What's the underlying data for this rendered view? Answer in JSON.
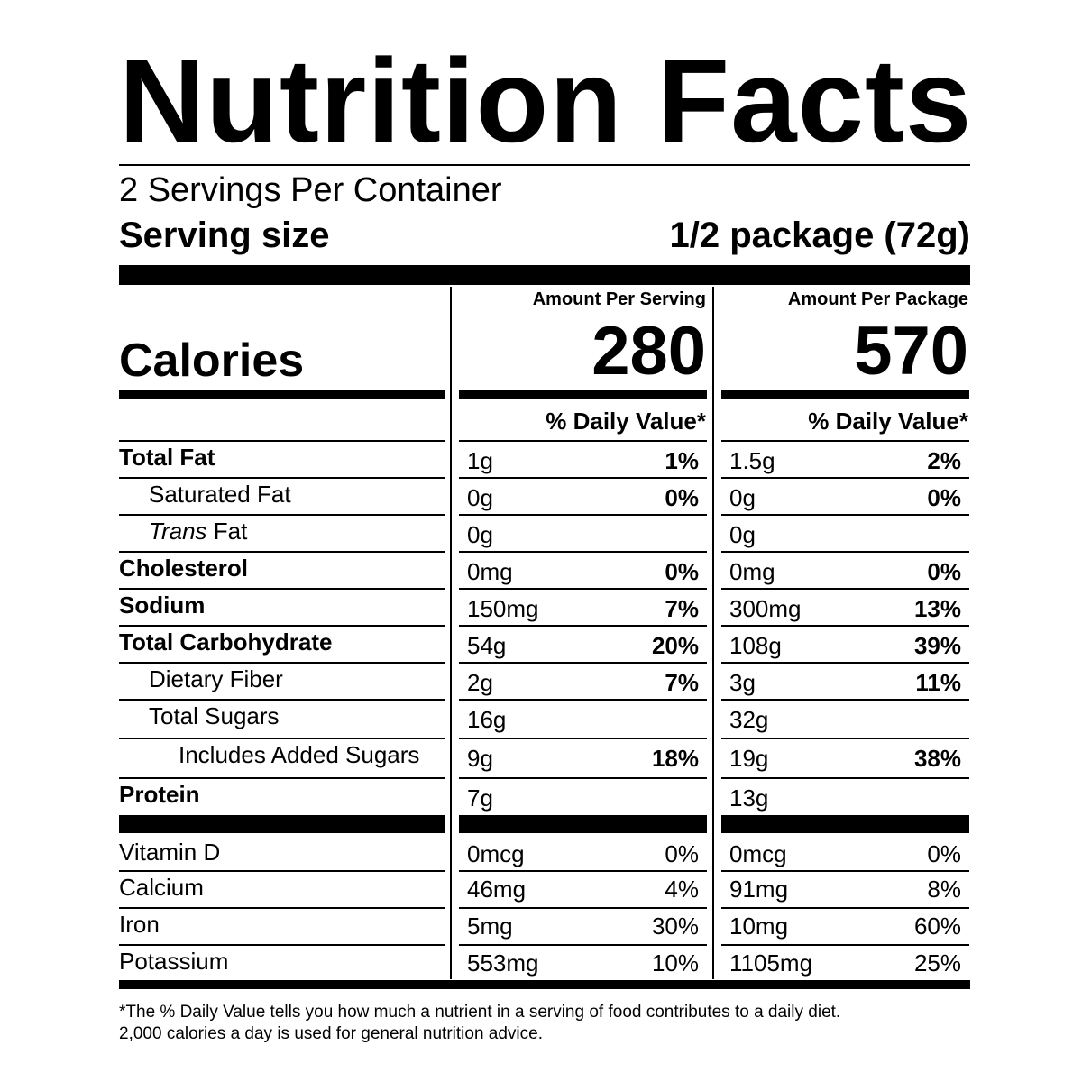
{
  "title": "Nutrition Facts",
  "servings_per_container": "2 Servings Per Container",
  "serving_size": {
    "label": "Serving size",
    "value": "1/2 package (72g)"
  },
  "columns": [
    {
      "header": "Amount Per Serving",
      "calories": "280",
      "dv_header": "% Daily Value*"
    },
    {
      "header": "Amount Per Package",
      "calories": "570",
      "dv_header": "% Daily Value*"
    }
  ],
  "calories_label": "Calories",
  "nutrients": [
    {
      "name": "Total Fat",
      "bold": true,
      "indent": 0,
      "serving": "1g",
      "serving_dv": "1%",
      "package": "1.5g",
      "package_dv": "2%"
    },
    {
      "name": "Saturated Fat",
      "bold": false,
      "indent": 1,
      "serving": "0g",
      "serving_dv": "0%",
      "package": "0g",
      "package_dv": "0%"
    },
    {
      "name_italic": "Trans",
      "name": " Fat",
      "bold": false,
      "indent": 1,
      "serving": "0g",
      "serving_dv": "",
      "package": "0g",
      "package_dv": ""
    },
    {
      "name": "Cholesterol",
      "bold": true,
      "indent": 0,
      "serving": "0mg",
      "serving_dv": "0%",
      "package": "0mg",
      "package_dv": "0%"
    },
    {
      "name": "Sodium",
      "bold": true,
      "indent": 0,
      "serving": "150mg",
      "serving_dv": "7%",
      "package": "300mg",
      "package_dv": "13%"
    },
    {
      "name": "Total Carbohydrate",
      "bold": true,
      "indent": 0,
      "serving": "54g",
      "serving_dv": "20%",
      "package": "108g",
      "package_dv": "39%"
    },
    {
      "name": "Dietary Fiber",
      "bold": false,
      "indent": 1,
      "serving": "2g",
      "serving_dv": "7%",
      "package": "3g",
      "package_dv": "11%"
    },
    {
      "name": "Total Sugars",
      "bold": false,
      "indent": 1,
      "serving": "16g",
      "serving_dv": "",
      "package": "32g",
      "package_dv": ""
    },
    {
      "name": "Includes Added Sugars",
      "bold": false,
      "indent": 2,
      "serving": "9g",
      "serving_dv": "18%",
      "package": "19g",
      "package_dv": "38%"
    },
    {
      "name": "Protein",
      "bold": true,
      "indent": 0,
      "serving": "7g",
      "serving_dv": "",
      "package": "13g",
      "package_dv": ""
    }
  ],
  "vitamins": [
    {
      "name": "Vitamin D",
      "serving": "0mcg",
      "serving_dv": "0%",
      "package": "0mcg",
      "package_dv": "0%"
    },
    {
      "name": "Calcium",
      "serving": "46mg",
      "serving_dv": "4%",
      "package": "91mg",
      "package_dv": "8%"
    },
    {
      "name": "Iron",
      "serving": "5mg",
      "serving_dv": "30%",
      "package": "10mg",
      "package_dv": "60%"
    },
    {
      "name": "Potassium",
      "serving": "553mg",
      "serving_dv": "10%",
      "package": "1105mg",
      "package_dv": "25%"
    }
  ],
  "footnote": [
    "*The % Daily Value tells you how much a nutrient in a serving of food contributes to a daily diet.",
    "2,000 calories a day is used for general nutrition advice."
  ]
}
